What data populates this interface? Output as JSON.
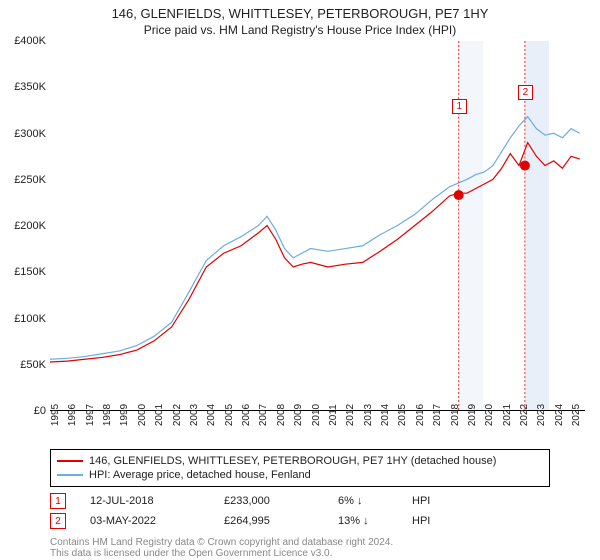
{
  "title": "146, GLENFIELDS, WHITTLESEY, PETERBOROUGH, PE7 1HY",
  "subtitle": "Price paid vs. HM Land Registry's House Price Index (HPI)",
  "chart": {
    "type": "line",
    "x_years": [
      1995,
      1996,
      1997,
      1998,
      1999,
      2000,
      2001,
      2002,
      2003,
      2004,
      2005,
      2006,
      2007,
      2008,
      2009,
      2010,
      2011,
      2012,
      2013,
      2014,
      2015,
      2016,
      2017,
      2018,
      2019,
      2020,
      2021,
      2022,
      2023,
      2024,
      2025
    ],
    "ylim": [
      0,
      400000
    ],
    "ytick_step": 50000,
    "ytick_labels": [
      "£0",
      "£50K",
      "£100K",
      "£150K",
      "£200K",
      "£250K",
      "£300K",
      "£350K",
      "£400K"
    ],
    "series": {
      "price_paid": {
        "color": "#e00000",
        "line_width": 1.2,
        "data": [
          [
            1995,
            52000
          ],
          [
            1996,
            53000
          ],
          [
            1997,
            55000
          ],
          [
            1998,
            57000
          ],
          [
            1999,
            60000
          ],
          [
            2000,
            65000
          ],
          [
            2001,
            75000
          ],
          [
            2002,
            90000
          ],
          [
            2003,
            120000
          ],
          [
            2004,
            155000
          ],
          [
            2005,
            170000
          ],
          [
            2006,
            178000
          ],
          [
            2007,
            192000
          ],
          [
            2007.5,
            200000
          ],
          [
            2008,
            185000
          ],
          [
            2008.5,
            165000
          ],
          [
            2009,
            155000
          ],
          [
            2009.5,
            158000
          ],
          [
            2010,
            160000
          ],
          [
            2011,
            155000
          ],
          [
            2012,
            158000
          ],
          [
            2013,
            160000
          ],
          [
            2014,
            172000
          ],
          [
            2015,
            185000
          ],
          [
            2016,
            200000
          ],
          [
            2017,
            215000
          ],
          [
            2018,
            232000
          ],
          [
            2018.5,
            235000
          ],
          [
            2019,
            235000
          ],
          [
            2019.5,
            240000
          ],
          [
            2020,
            245000
          ],
          [
            2020.5,
            250000
          ],
          [
            2021,
            262000
          ],
          [
            2021.5,
            278000
          ],
          [
            2022,
            265000
          ],
          [
            2022.5,
            290000
          ],
          [
            2023,
            275000
          ],
          [
            2023.5,
            265000
          ],
          [
            2024,
            270000
          ],
          [
            2024.5,
            262000
          ],
          [
            2025,
            275000
          ],
          [
            2025.5,
            272000
          ]
        ]
      },
      "hpi": {
        "color": "#6dade0",
        "line_width": 1.2,
        "data": [
          [
            1995,
            55000
          ],
          [
            1996,
            56000
          ],
          [
            1997,
            58000
          ],
          [
            1998,
            61000
          ],
          [
            1999,
            64000
          ],
          [
            2000,
            70000
          ],
          [
            2001,
            80000
          ],
          [
            2002,
            95000
          ],
          [
            2003,
            128000
          ],
          [
            2004,
            162000
          ],
          [
            2005,
            178000
          ],
          [
            2006,
            188000
          ],
          [
            2007,
            200000
          ],
          [
            2007.5,
            210000
          ],
          [
            2008,
            195000
          ],
          [
            2008.5,
            175000
          ],
          [
            2009,
            165000
          ],
          [
            2009.5,
            170000
          ],
          [
            2010,
            175000
          ],
          [
            2011,
            172000
          ],
          [
            2012,
            175000
          ],
          [
            2013,
            178000
          ],
          [
            2014,
            190000
          ],
          [
            2015,
            200000
          ],
          [
            2016,
            212000
          ],
          [
            2017,
            228000
          ],
          [
            2018,
            242000
          ],
          [
            2019,
            250000
          ],
          [
            2019.5,
            255000
          ],
          [
            2020,
            258000
          ],
          [
            2020.5,
            265000
          ],
          [
            2021,
            280000
          ],
          [
            2021.5,
            295000
          ],
          [
            2022,
            308000
          ],
          [
            2022.5,
            318000
          ],
          [
            2023,
            305000
          ],
          [
            2023.5,
            298000
          ],
          [
            2024,
            300000
          ],
          [
            2024.5,
            295000
          ],
          [
            2025,
            305000
          ],
          [
            2025.5,
            300000
          ]
        ]
      }
    },
    "sale_markers": [
      {
        "n": "1",
        "x": 2018.53,
        "y": 233000,
        "label_y": 330000,
        "band_color": "#f3f6fb"
      },
      {
        "n": "2",
        "x": 2022.34,
        "y": 264995,
        "label_y": 345000,
        "band_color": "#e8eff9"
      }
    ],
    "marker_color": "#e00000",
    "marker_size": 5,
    "background_color": "#ffffff",
    "axis_color": "#000000",
    "label_fontsize": 11
  },
  "legend": {
    "items": [
      {
        "color": "#e00000",
        "label": "146, GLENFIELDS, WHITTLESEY, PETERBOROUGH, PE7 1HY (detached house)"
      },
      {
        "color": "#6dade0",
        "label": "HPI: Average price, detached house, Fenland"
      }
    ]
  },
  "sales": [
    {
      "n": "1",
      "date": "12-JUL-2018",
      "price": "£233,000",
      "pct": "6%",
      "arrow": "↓",
      "vs": "HPI"
    },
    {
      "n": "2",
      "date": "03-MAY-2022",
      "price": "£264,995",
      "pct": "13%",
      "arrow": "↓",
      "vs": "HPI"
    }
  ],
  "footer": {
    "line1": "Contains HM Land Registry data © Crown copyright and database right 2024.",
    "line2": "This data is licensed under the Open Government Licence v3.0."
  }
}
